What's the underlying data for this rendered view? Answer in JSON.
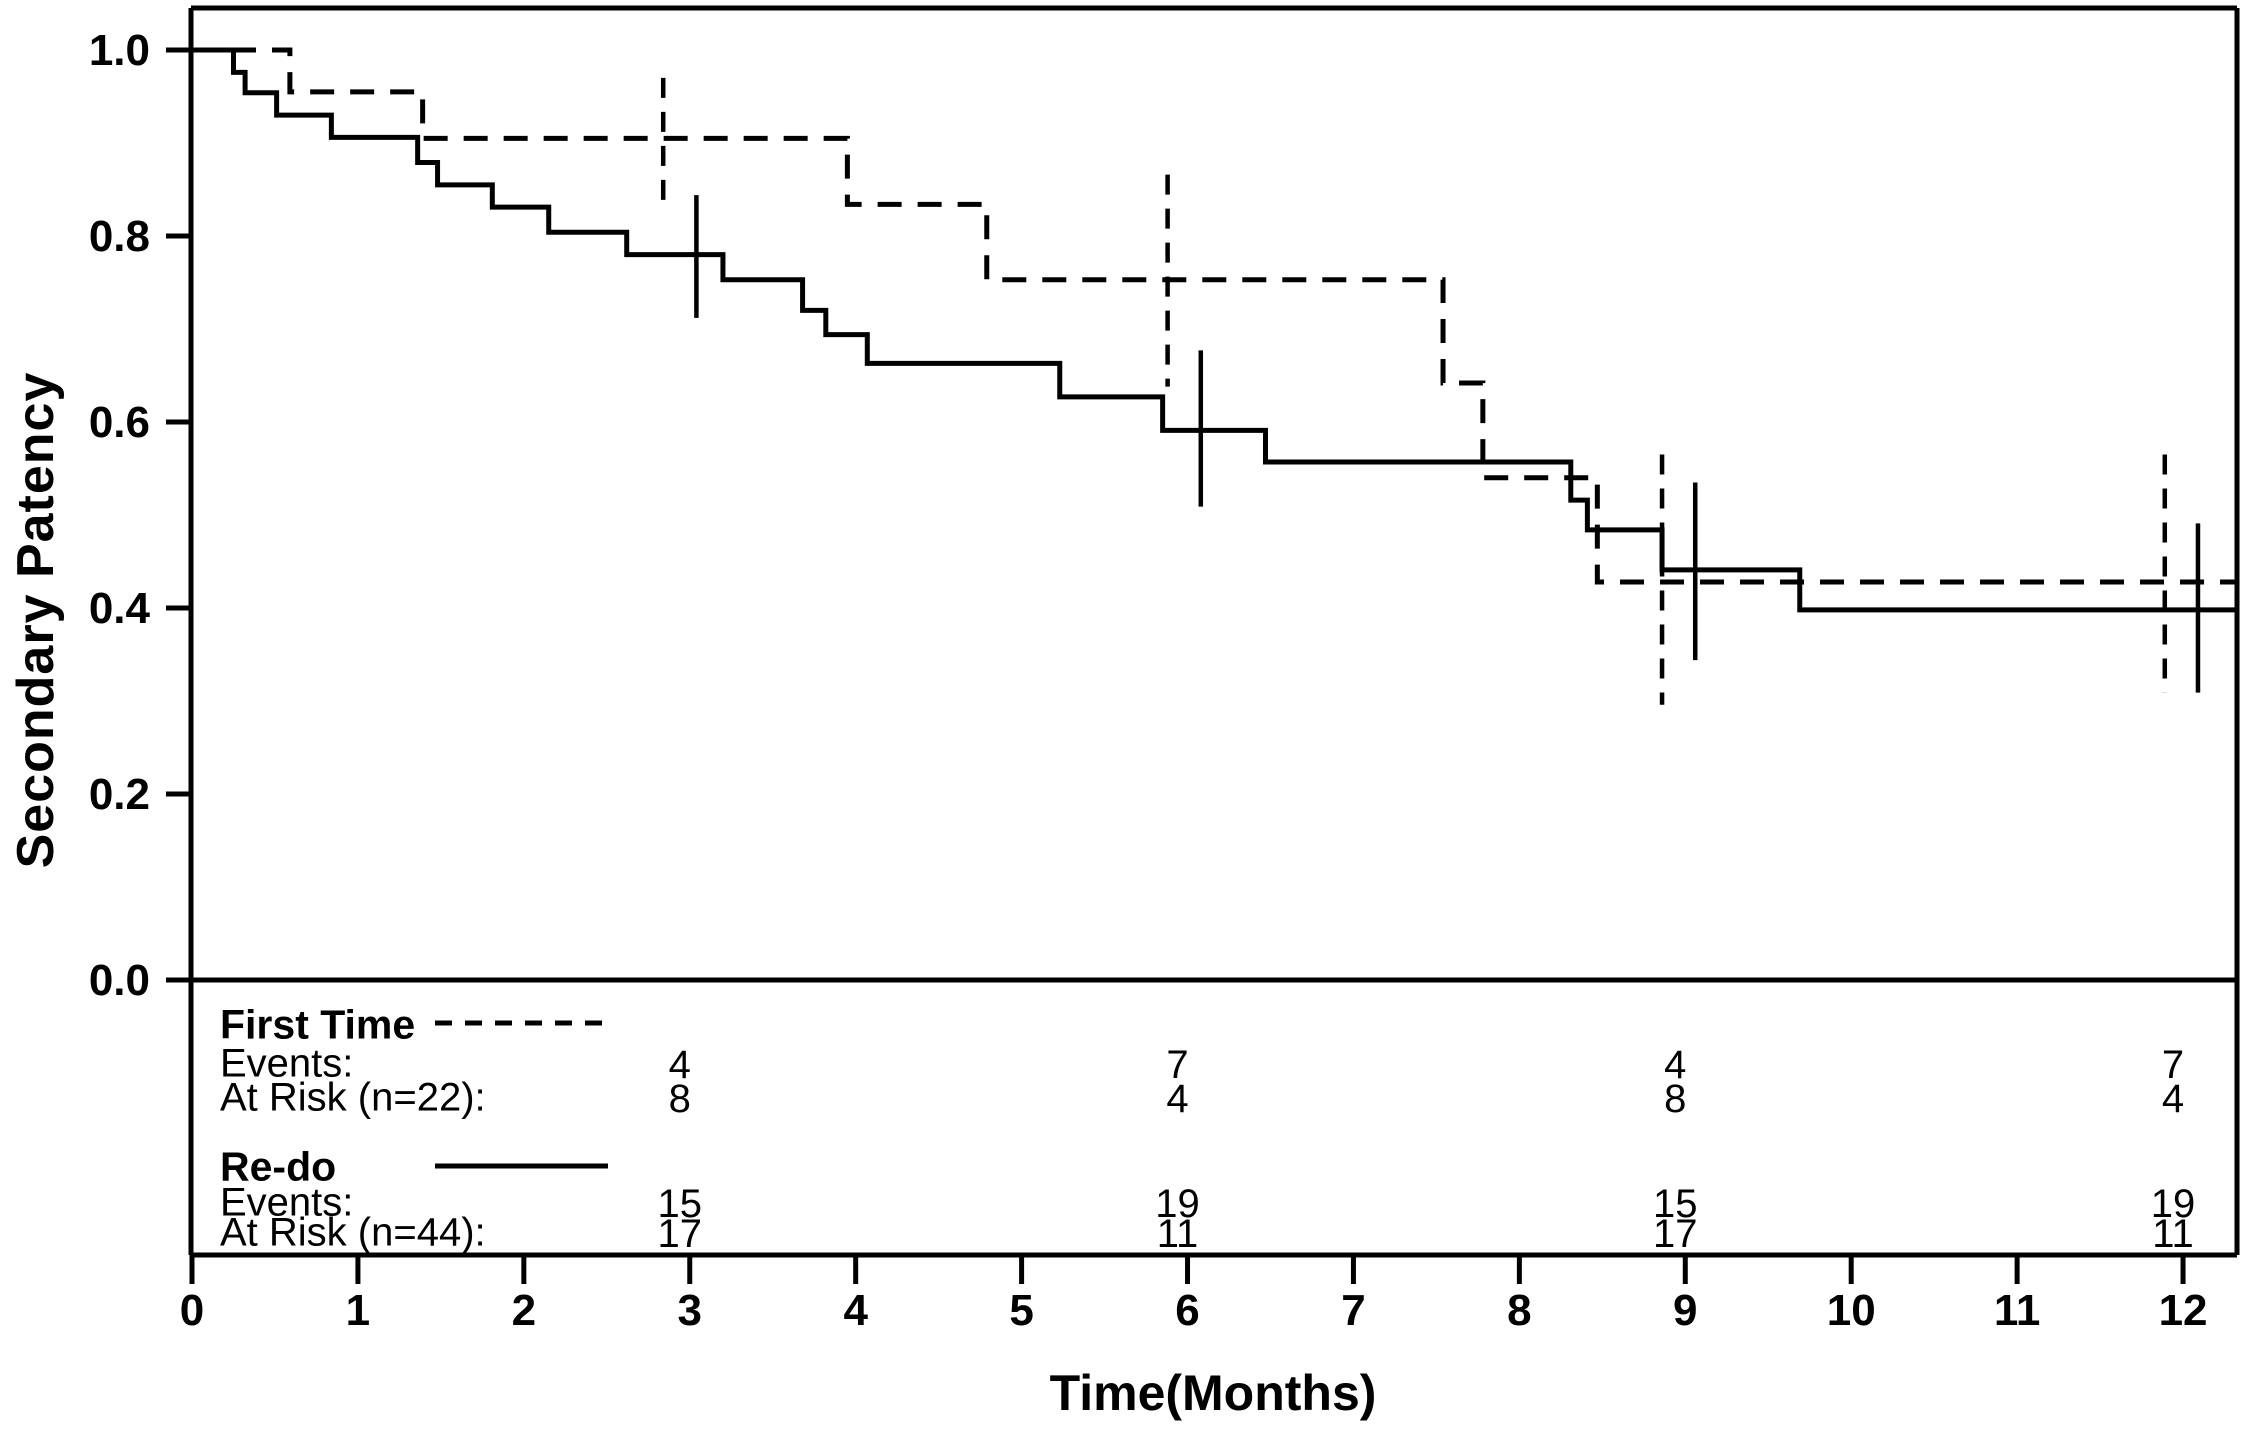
{
  "figure": {
    "background": "#ffffff",
    "ink": "#000000"
  },
  "y_axis": {
    "title": "Secondary Patency",
    "tick_labels": [
      "1.0",
      "0.8",
      "0.6",
      "0.4",
      "0.2",
      "0.0"
    ],
    "tick_values": [
      1.0,
      0.8,
      0.6,
      0.4,
      0.2,
      0.0
    ]
  },
  "x_axis": {
    "title": "Time(Months)",
    "tick_labels": [
      "0",
      "1",
      "2",
      "3",
      "4",
      "5",
      "6",
      "7",
      "8",
      "9",
      "10",
      "11",
      "12"
    ],
    "tick_values": [
      0,
      1,
      2,
      3,
      4,
      5,
      6,
      7,
      8,
      9,
      10,
      11,
      12
    ]
  },
  "chart_data": {
    "type": "line",
    "subtype": "kaplan_meier_step",
    "title": "",
    "xlabel": "Time(Months)",
    "ylabel": "Secondary Patency",
    "xlim": [
      0,
      12.33
    ],
    "ylim": [
      0,
      1.045
    ],
    "grid": false,
    "legend_position": "below-plot-left",
    "series": [
      {
        "name": "First Time",
        "line_style": "dashed",
        "color": "#000000",
        "steps": [
          [
            0,
            1.0
          ],
          [
            0.59,
            0.955
          ],
          [
            1.39,
            0.905
          ],
          [
            3.95,
            0.834
          ],
          [
            4.79,
            0.753
          ],
          [
            7.54,
            0.642
          ],
          [
            7.78,
            0.54
          ],
          [
            8.47,
            0.428
          ],
          [
            12.33,
            0.428
          ]
        ],
        "censor_marks": [
          {
            "x": 2.84,
            "y": 0.905,
            "from": 0.97,
            "to": 0.837
          },
          {
            "x": 5.88,
            "y": 0.753,
            "from": 0.866,
            "to": 0.638
          },
          {
            "x": 8.86,
            "y": 0.428,
            "from": 0.565,
            "to": 0.296
          },
          {
            "x": 11.89,
            "y": 0.428,
            "from": 0.565,
            "to": 0.309
          }
        ]
      },
      {
        "name": "Re-do",
        "line_style": "solid",
        "color": "#000000",
        "steps": [
          [
            0,
            1.0
          ],
          [
            0.25,
            0.976
          ],
          [
            0.32,
            0.954
          ],
          [
            0.51,
            0.93
          ],
          [
            0.84,
            0.906
          ],
          [
            1.36,
            0.879
          ],
          [
            1.48,
            0.855
          ],
          [
            1.81,
            0.831
          ],
          [
            2.15,
            0.804
          ],
          [
            2.62,
            0.78
          ],
          [
            3.2,
            0.753
          ],
          [
            3.68,
            0.72
          ],
          [
            3.82,
            0.694
          ],
          [
            4.07,
            0.663
          ],
          [
            5.23,
            0.627
          ],
          [
            5.85,
            0.591
          ],
          [
            6.47,
            0.557
          ],
          [
            8.31,
            0.516
          ],
          [
            8.41,
            0.484
          ],
          [
            8.86,
            0.441
          ],
          [
            9.69,
            0.398
          ],
          [
            12.33,
            0.398
          ]
        ],
        "censor_marks": [
          {
            "x": 3.04,
            "y": 0.78,
            "from": 0.844,
            "to": 0.712
          },
          {
            "x": 6.08,
            "y": 0.591,
            "from": 0.677,
            "to": 0.509
          },
          {
            "x": 9.06,
            "y": 0.441,
            "from": 0.535,
            "to": 0.344
          },
          {
            "x": 12.09,
            "y": 0.398,
            "from": 0.491,
            "to": 0.309
          }
        ]
      }
    ],
    "risk_table": {
      "columns_months": [
        3,
        6,
        9,
        12
      ],
      "groups": [
        {
          "label": "First Time",
          "line_style": "dashed",
          "rows": [
            {
              "label": "Events:",
              "values": [
                "4",
                "7",
                "4",
                "7"
              ]
            },
            {
              "label": "At Risk (n=22):",
              "values": [
                "8",
                "4",
                "8",
                "4"
              ]
            }
          ]
        },
        {
          "label": "Re-do",
          "line_style": "solid",
          "rows": [
            {
              "label": "Events:",
              "values": [
                "15",
                "19",
                "15",
                "19"
              ]
            },
            {
              "label": "At Risk (n=44):",
              "values": [
                "17",
                "11",
                "17",
                "11"
              ]
            }
          ]
        }
      ]
    }
  }
}
